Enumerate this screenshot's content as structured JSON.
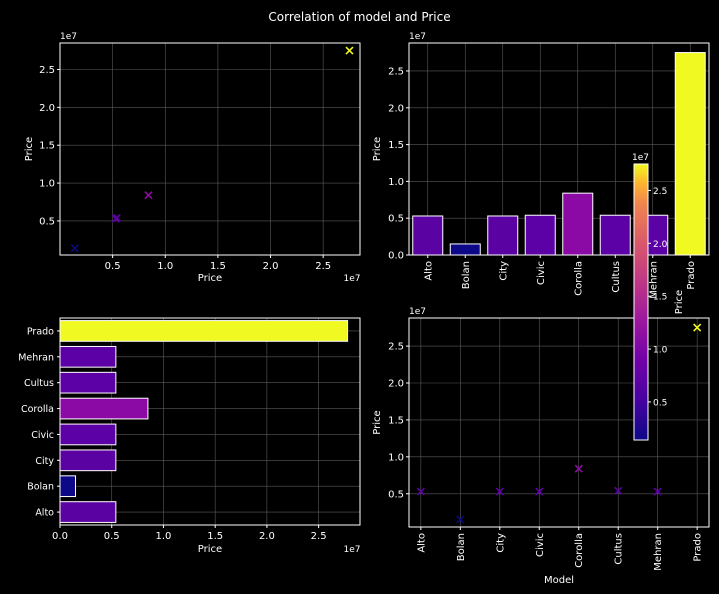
{
  "figure": {
    "title": "Correlation of model and Price",
    "background": "#000000",
    "palette": {
      "Alto": "#5b02a3",
      "Bolan": "#0d0887",
      "City": "#5b02a3",
      "Civic": "#5c01a6",
      "Corolla": "#8b0aa5",
      "Cultus": "#5c01a6",
      "Mehran": "#5c01a6",
      "Prado": "#f0f921"
    }
  },
  "chart_data": [
    {
      "id": "scatter-price-price",
      "type": "scatter",
      "marker": "x",
      "xlabel": "Price",
      "ylabel": "Price",
      "x_offset_label": "1e7",
      "y_offset_label": "1e7",
      "xlim": [
        0,
        2.85
      ],
      "ylim": [
        0.05,
        2.85
      ],
      "xticks": [
        0.5,
        1.0,
        1.5,
        2.0,
        2.5
      ],
      "xtick_labels": [
        "0.5",
        "1.0",
        "1.5",
        "2.0",
        "2.5"
      ],
      "yticks": [
        0.5,
        1.0,
        1.5,
        2.0,
        2.5
      ],
      "ytick_labels": [
        "0.5",
        "1.0",
        "1.5",
        "2.0",
        "2.5"
      ],
      "grid": true,
      "points": [
        {
          "x": 0.14,
          "y": 0.14,
          "category": "Bolan"
        },
        {
          "x": 0.53,
          "y": 0.53,
          "category": "Alto"
        },
        {
          "x": 0.54,
          "y": 0.54,
          "category": "Civic"
        },
        {
          "x": 0.84,
          "y": 0.84,
          "category": "Corolla"
        },
        {
          "x": 2.75,
          "y": 2.75,
          "category": "Prado"
        }
      ]
    },
    {
      "id": "bar-model-price",
      "type": "bar",
      "categories": [
        "Alto",
        "Bolan",
        "City",
        "Civic",
        "Corolla",
        "Cultus",
        "Mehran",
        "Prado"
      ],
      "values": [
        0.53,
        0.15,
        0.53,
        0.54,
        0.84,
        0.54,
        0.54,
        2.75
      ],
      "ylabel": "Price",
      "xlabel": "",
      "y_offset_label": "1e7",
      "ylim": [
        0,
        2.88
      ],
      "yticks": [
        0.0,
        0.5,
        1.0,
        1.5,
        2.0,
        2.5
      ],
      "ytick_labels": [
        "0.0",
        "0.5",
        "1.0",
        "1.5",
        "2.0",
        "2.5"
      ],
      "grid": true
    },
    {
      "id": "barh-model-price",
      "type": "bar",
      "orientation": "horizontal",
      "categories": [
        "Alto",
        "Bolan",
        "City",
        "Civic",
        "Corolla",
        "Cultus",
        "Mehran",
        "Prado"
      ],
      "values": [
        0.54,
        0.15,
        0.54,
        0.54,
        0.85,
        0.54,
        0.54,
        2.78
      ],
      "xlabel": "Price",
      "x_offset_label": "1e7",
      "xlim": [
        0,
        2.9
      ],
      "xticks": [
        0.0,
        0.5,
        1.0,
        1.5,
        2.0,
        2.5
      ],
      "xtick_labels": [
        "0.0",
        "0.5",
        "1.0",
        "1.5",
        "2.0",
        "2.5"
      ],
      "grid": true
    },
    {
      "id": "scatter-model-price",
      "type": "scatter",
      "marker": "x",
      "categories": [
        "Alto",
        "Bolan",
        "City",
        "Civic",
        "Corolla",
        "Cultus",
        "Mehran",
        "Prado"
      ],
      "values": [
        0.53,
        0.15,
        0.53,
        0.53,
        0.84,
        0.54,
        0.53,
        2.75
      ],
      "xlabel": "Model",
      "ylabel": "Price",
      "y_offset_label": "1e7",
      "ylim": [
        0.05,
        2.88
      ],
      "yticks": [
        0.5,
        1.0,
        1.5,
        2.0,
        2.5
      ],
      "ytick_labels": [
        "0.5",
        "1.0",
        "1.5",
        "2.0",
        "2.5"
      ],
      "grid": true
    },
    {
      "id": "colorbar",
      "type": "colorbar",
      "colormap": "plasma",
      "label": "Price",
      "offset_label": "1e7",
      "range": [
        0.14,
        2.75
      ],
      "ticks": [
        0.5,
        1.0,
        1.5,
        2.0,
        2.5
      ],
      "tick_labels": [
        "0.5",
        "1.0",
        "1.5",
        "2.0",
        "2.5"
      ]
    }
  ]
}
